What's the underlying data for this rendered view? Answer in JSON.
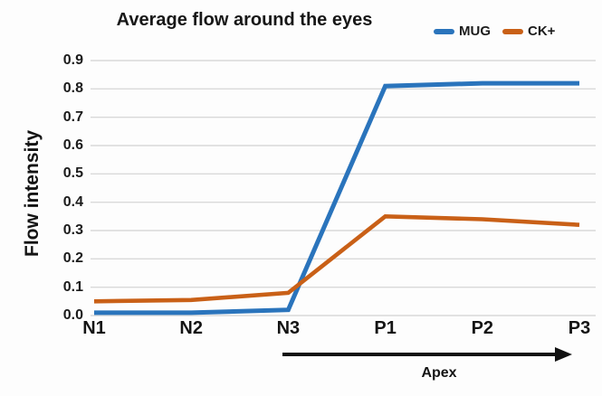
{
  "chart_data": {
    "type": "line",
    "title": "Average flow around the eyes",
    "ylabel": "Flow intensity",
    "xlabel": "",
    "categories": [
      "N1",
      "N2",
      "N3",
      "P1",
      "P2",
      "P3"
    ],
    "series": [
      {
        "name": "MUG",
        "color": "#2a74bc",
        "values": [
          0.01,
          0.01,
          0.02,
          0.81,
          0.82,
          0.82
        ]
      },
      {
        "name": "CK+",
        "color": "#c96017",
        "values": [
          0.05,
          0.055,
          0.08,
          0.35,
          0.34,
          0.32
        ]
      }
    ],
    "ylim": [
      0,
      0.9
    ],
    "ytick_step": 0.1,
    "ytick_labels": [
      "0.0",
      "0.1",
      "0.2",
      "0.3",
      "0.4",
      "0.5",
      "0.6",
      "0.7",
      "0.8",
      "0.9"
    ],
    "grid": true,
    "gridline_color": "#d9d9d9",
    "legend_position": "top-right"
  },
  "annotations": [
    {
      "type": "arrow",
      "label": "Apex",
      "spans": "N3 to P3"
    }
  ],
  "style": {
    "text_color": "#1b1b1b",
    "grid_color": "#d9d9d9",
    "arrow_color": "#111111",
    "background": "#fdfdfd"
  }
}
